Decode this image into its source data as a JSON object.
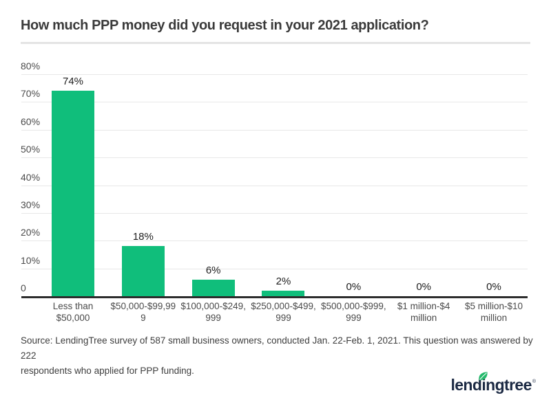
{
  "title": "How much PPP money did you request in your 2021 application?",
  "chart_data": {
    "type": "bar",
    "title": "How much PPP money did you request in your 2021 application?",
    "xlabel": "",
    "ylabel": "",
    "ylim": [
      0,
      80
    ],
    "grid": true,
    "legend": "none",
    "bar_color": "#10be7b",
    "categories": [
      "Less than $50,000",
      "$50,000-$99,999",
      "$100,000-$249,999",
      "$250,000-$499,999",
      "$500,000-$999,999",
      "$1 million-$4 million",
      "$5 million-$10 million"
    ],
    "category_lines": [
      [
        "Less than",
        "$50,000"
      ],
      [
        "$50,000-$99,99",
        "9"
      ],
      [
        "$100,000-$249,",
        "999"
      ],
      [
        "$250,000-$499,",
        "999"
      ],
      [
        "$500,000-$999,",
        "999"
      ],
      [
        "$1 million-$4",
        "million"
      ],
      [
        "$5 million-$10",
        "million"
      ]
    ],
    "values": [
      74,
      18,
      6,
      2,
      0,
      0,
      0
    ],
    "value_labels": [
      "74%",
      "18%",
      "6%",
      "2%",
      "0%",
      "0%",
      "0%"
    ],
    "y_ticks": [
      "80%",
      "70%",
      "60%",
      "50%",
      "40%",
      "30%",
      "20%",
      "10%",
      "0"
    ]
  },
  "source": {
    "text": "Source: LendingTree survey of 587 small business owners, conducted Jan. 22-Feb. 1, 2021. This question was answered by 222\nrespondents who applied for PPP funding."
  },
  "logo": {
    "text": "lendingtree",
    "trademark": "®",
    "text_color": "#1c2a44",
    "leaf_color": "#24b96b"
  }
}
